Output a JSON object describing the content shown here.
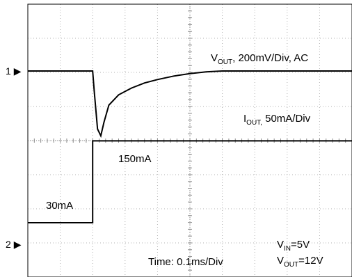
{
  "chart_data": {
    "type": "line",
    "grid": true,
    "x_per_div_ms": 0.1,
    "divisions": {
      "x": 10,
      "y": 8
    },
    "channels": [
      {
        "marker": "1",
        "symbol": "▶"
      },
      {
        "marker": "2",
        "symbol": "▶"
      }
    ],
    "series": [
      {
        "name_main": "V",
        "name_sub": "OUT",
        "name_rest": ", 200mV/Div, AC",
        "color": "#000000",
        "points": [
          [
            0,
            0
          ],
          [
            0.2,
            0
          ],
          [
            0.205,
            -0.12
          ],
          [
            0.215,
            -0.34
          ],
          [
            0.225,
            -0.38
          ],
          [
            0.235,
            -0.3
          ],
          [
            0.25,
            -0.2
          ],
          [
            0.28,
            -0.14
          ],
          [
            0.32,
            -0.1
          ],
          [
            0.36,
            -0.07
          ],
          [
            0.4,
            -0.05
          ],
          [
            0.45,
            -0.03
          ],
          [
            0.5,
            -0.015
          ],
          [
            0.55,
            -0.005
          ],
          [
            0.6,
            0
          ],
          [
            1.0,
            0
          ]
        ]
      },
      {
        "name_main": "I",
        "name_sub": "OUT,",
        "name_rest": " 50mA/Div",
        "color": "#000000",
        "points": [
          [
            0,
            30
          ],
          [
            0.2,
            30
          ],
          [
            0.205,
            150
          ],
          [
            1.0,
            150
          ]
        ]
      }
    ],
    "annotations": {
      "low_current": "30mA",
      "high_current": "150mA",
      "time": "Time: 0.1ms/Div",
      "vin_main": "V",
      "vin_sub": "IN",
      "vin_rest": "=5V",
      "vout_main": "V",
      "vout_sub": "OUT",
      "vout_rest": "=12V"
    }
  }
}
